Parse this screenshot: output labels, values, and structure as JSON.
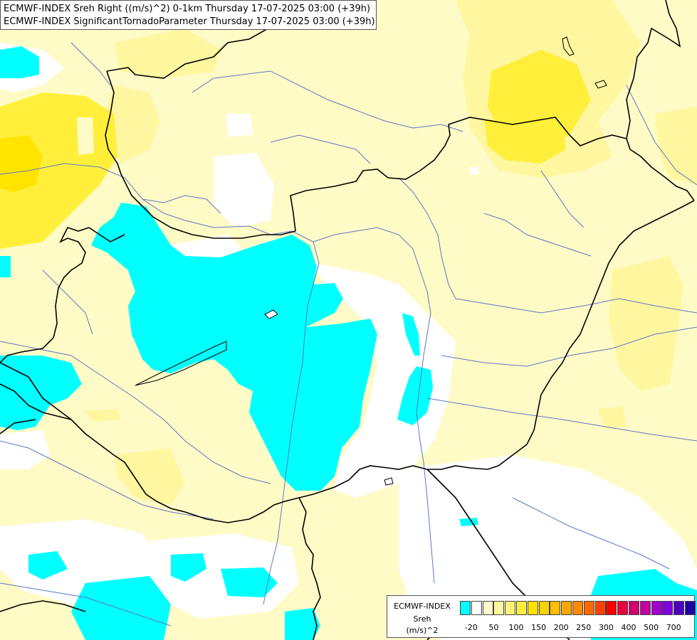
{
  "title": {
    "line1": "ECMWF-INDEX Sreh Right ((m/s)^2) 0-1km Thursday 17-07-2025 03:00 (+39h)",
    "line2": "ECMWF-INDEX SignificantTornadoParameter Thursday 17-07-2025 03:00 (+39h)"
  },
  "legend": {
    "line1": "ECMWF-INDEX",
    "line2": "Sreh",
    "line3": "(m/s)^2",
    "colors": [
      "#00ffff",
      "#ffffff",
      "#fffbc6",
      "#fff6a0",
      "#fff176",
      "#ffec3c",
      "#ffe100",
      "#ffd000",
      "#ffbc00",
      "#ffa500",
      "#ff8a00",
      "#ff6a00",
      "#ff4000",
      "#ff0000",
      "#e80040",
      "#d00070",
      "#c000a0",
      "#a000d0",
      "#8000e0",
      "#5000c0",
      "#2000a0"
    ],
    "ticks": [
      "-20",
      "50",
      "100",
      "150",
      "200",
      "250",
      "300",
      "400",
      "500",
      "700"
    ]
  },
  "colors": {
    "background": "#fffbc6",
    "cyan": "#00ffff",
    "white": "#ffffff",
    "yellow_light": "#fff6a0",
    "yellow": "#ffef3a",
    "yellow_strong": "#ffe400",
    "border": "#000000",
    "river": "#5a78c8"
  }
}
